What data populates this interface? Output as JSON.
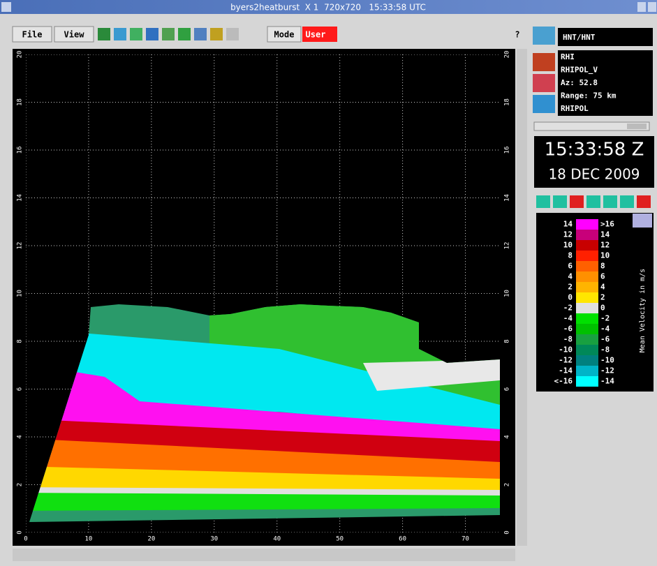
{
  "window": {
    "title": "byers2heatburst  X 1  720x720   15:33:58 UTC"
  },
  "toolbar": {
    "file": "File",
    "view": "View",
    "mode": "Mode",
    "user": "User",
    "help": "?"
  },
  "side": {
    "site": "HNT/HNT",
    "info": [
      "RHI",
      "RHIPOL_V",
      "Az: 52.8",
      "Range: 75 km",
      "RHIPOL"
    ],
    "time": "15:33:58 Z",
    "date": "18 DEC 2009"
  },
  "plot": {
    "xlim": [
      0,
      75.5
    ],
    "ylim": [
      0,
      20
    ],
    "xticks": [
      0,
      10,
      20,
      30,
      40,
      50,
      60,
      70
    ],
    "yticks": [
      0,
      2,
      4,
      6,
      8,
      10,
      12,
      14,
      16,
      18,
      20
    ],
    "grid": true
  },
  "legend": {
    "title": "Mean Velocity in m/s",
    "left": [
      "14",
      "12",
      "10",
      "8",
      "6",
      "4",
      "2",
      "0",
      "-2",
      "-4",
      "-6",
      "-8",
      "-10",
      "-12",
      "-14",
      "<-16"
    ],
    "right": [
      ">16",
      "14",
      "12",
      "10",
      "8",
      "6",
      "4",
      "2",
      "0",
      "-2",
      "-4",
      "-6",
      "-8",
      "-10",
      "-12",
      "-14"
    ],
    "colors": [
      "#ff00ff",
      "#c8007a",
      "#c80000",
      "#ff2000",
      "#ff6000",
      "#ff9000",
      "#ffb400",
      "#ffe600",
      "#e0e0e0",
      "#00e000",
      "#00c000",
      "#18a040",
      "#008858",
      "#00807f",
      "#00b4c8",
      "#00ffff"
    ]
  }
}
